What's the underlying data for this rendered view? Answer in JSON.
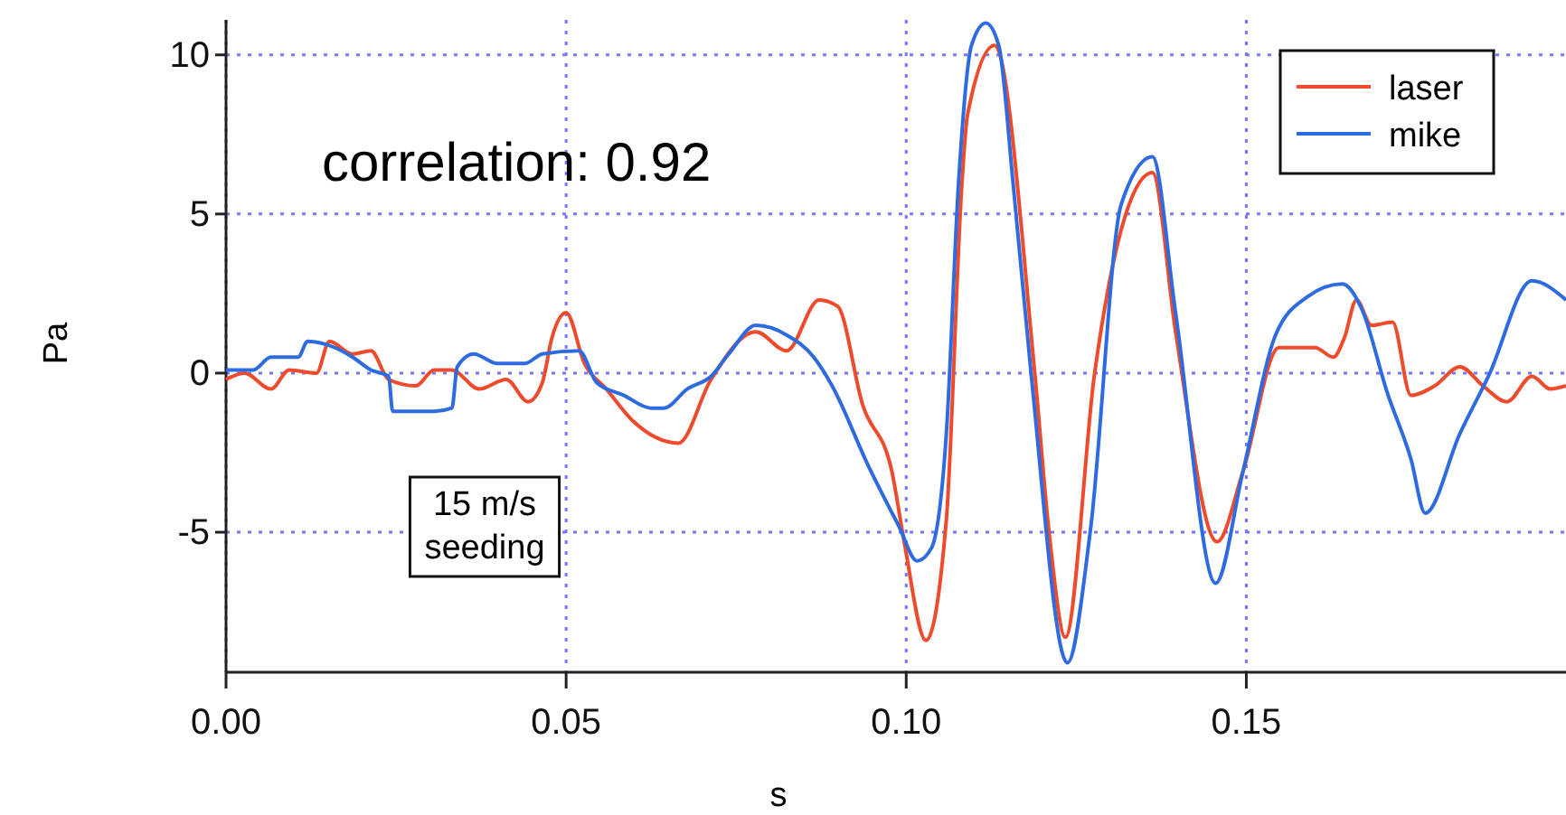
{
  "chart_data": {
    "type": "line",
    "xlabel": "s",
    "ylabel": "Pa",
    "xlim": [
      0,
      0.197
    ],
    "ylim": [
      -9.4,
      11.1
    ],
    "xticks": [
      {
        "value": 0,
        "label": "0.00"
      },
      {
        "value": 0.05,
        "label": "0.05"
      },
      {
        "value": 0.1,
        "label": "0.10"
      },
      {
        "value": 0.15,
        "label": "0.15"
      }
    ],
    "yticks": [
      -5,
      0,
      5,
      10
    ],
    "grid": true,
    "legend": "top right",
    "line_style": "solid",
    "marker": "none",
    "annotations": [
      "correlation: 0.92",
      "15 m/s\nseeding"
    ],
    "series": [
      {
        "name": "laser",
        "color": "#ee4a2c",
        "x": [
          0,
          0.0027,
          0.0066,
          0.0093,
          0.0133,
          0.0152,
          0.0186,
          0.0213,
          0.0239,
          0.0279,
          0.0306,
          0.0332,
          0.0372,
          0.0412,
          0.0444,
          0.0465,
          0.0479,
          0.05,
          0.0527,
          0.0559,
          0.0598,
          0.0665,
          0.0713,
          0.0779,
          0.0824,
          0.0872,
          0.0899,
          0.0936,
          0.0979,
          0.0997,
          0.1029,
          0.1059,
          0.1082,
          0.109,
          0.113,
          0.1189,
          0.121,
          0.1234,
          0.1277,
          0.1316,
          0.1362,
          0.1396,
          0.1457,
          0.1495,
          0.1548,
          0.1601,
          0.1628,
          0.1644,
          0.1662,
          0.1684,
          0.1715,
          0.1742,
          0.1777,
          0.1814,
          0.1848,
          0.1883,
          0.192,
          0.1947,
          0.197
        ],
        "values": [
          -0.2,
          0,
          -0.5,
          0.1,
          0,
          1.0,
          0.6,
          0.7,
          -0.2,
          -0.4,
          0.1,
          0.1,
          -0.5,
          -0.2,
          -0.9,
          -0.3,
          1.1,
          1.9,
          0.3,
          -0.5,
          -1.5,
          -2.2,
          -0.2,
          1.3,
          0.7,
          2.3,
          2.1,
          -1.0,
          -3.1,
          -5.3,
          -8.4,
          -4.6,
          6.0,
          8.1,
          10.3,
          0,
          -5,
          -8.3,
          0,
          4.5,
          6.3,
          1.3,
          -5.3,
          -3.1,
          0.8,
          0.8,
          0.5,
          1.1,
          2.3,
          1.5,
          1.6,
          -0.7,
          -0.4,
          0.2,
          -0.4,
          -0.9,
          -0.1,
          -0.5,
          -0.4
        ]
      },
      {
        "name": "mike",
        "color": "#2f6be0",
        "x": [
          0,
          0.004,
          0.0066,
          0.0106,
          0.012,
          0.016,
          0.0186,
          0.0213,
          0.0239,
          0.0245,
          0.0306,
          0.0332,
          0.034,
          0.0364,
          0.0399,
          0.0439,
          0.0465,
          0.0519,
          0.0545,
          0.0585,
          0.0625,
          0.0644,
          0.0678,
          0.0713,
          0.0739,
          0.0779,
          0.0824,
          0.0864,
          0.0891,
          0.0944,
          0.0989,
          0.1016,
          0.1037,
          0.1059,
          0.1077,
          0.1096,
          0.1117,
          0.1136,
          0.1157,
          0.1184,
          0.1237,
          0.1271,
          0.1316,
          0.1362,
          0.1396,
          0.1455,
          0.1495,
          0.1543,
          0.159,
          0.1641,
          0.167,
          0.1707,
          0.1742,
          0.1763,
          0.1814,
          0.1856,
          0.192,
          0.197
        ],
        "values": [
          0.1,
          0.1,
          0.5,
          0.5,
          1.0,
          0.8,
          0.5,
          0.1,
          -0.1,
          -1.2,
          -1.2,
          -1.1,
          0.2,
          0.6,
          0.3,
          0.3,
          0.6,
          0.7,
          -0.3,
          -0.7,
          -1.1,
          -1.1,
          -0.5,
          -0.1,
          0.6,
          1.5,
          1.2,
          0.5,
          -0.4,
          -2.9,
          -4.8,
          -5.9,
          -5.5,
          -1.9,
          6.0,
          10.3,
          11.0,
          10.3,
          6.0,
          -0.1,
          -9.1,
          -4.9,
          5.3,
          6.8,
          1.9,
          -6.6,
          -3.1,
          1.2,
          2.4,
          2.8,
          2.0,
          -0.6,
          -2.7,
          -4.4,
          -1.9,
          -0.1,
          2.9,
          2.3
        ]
      }
    ]
  }
}
